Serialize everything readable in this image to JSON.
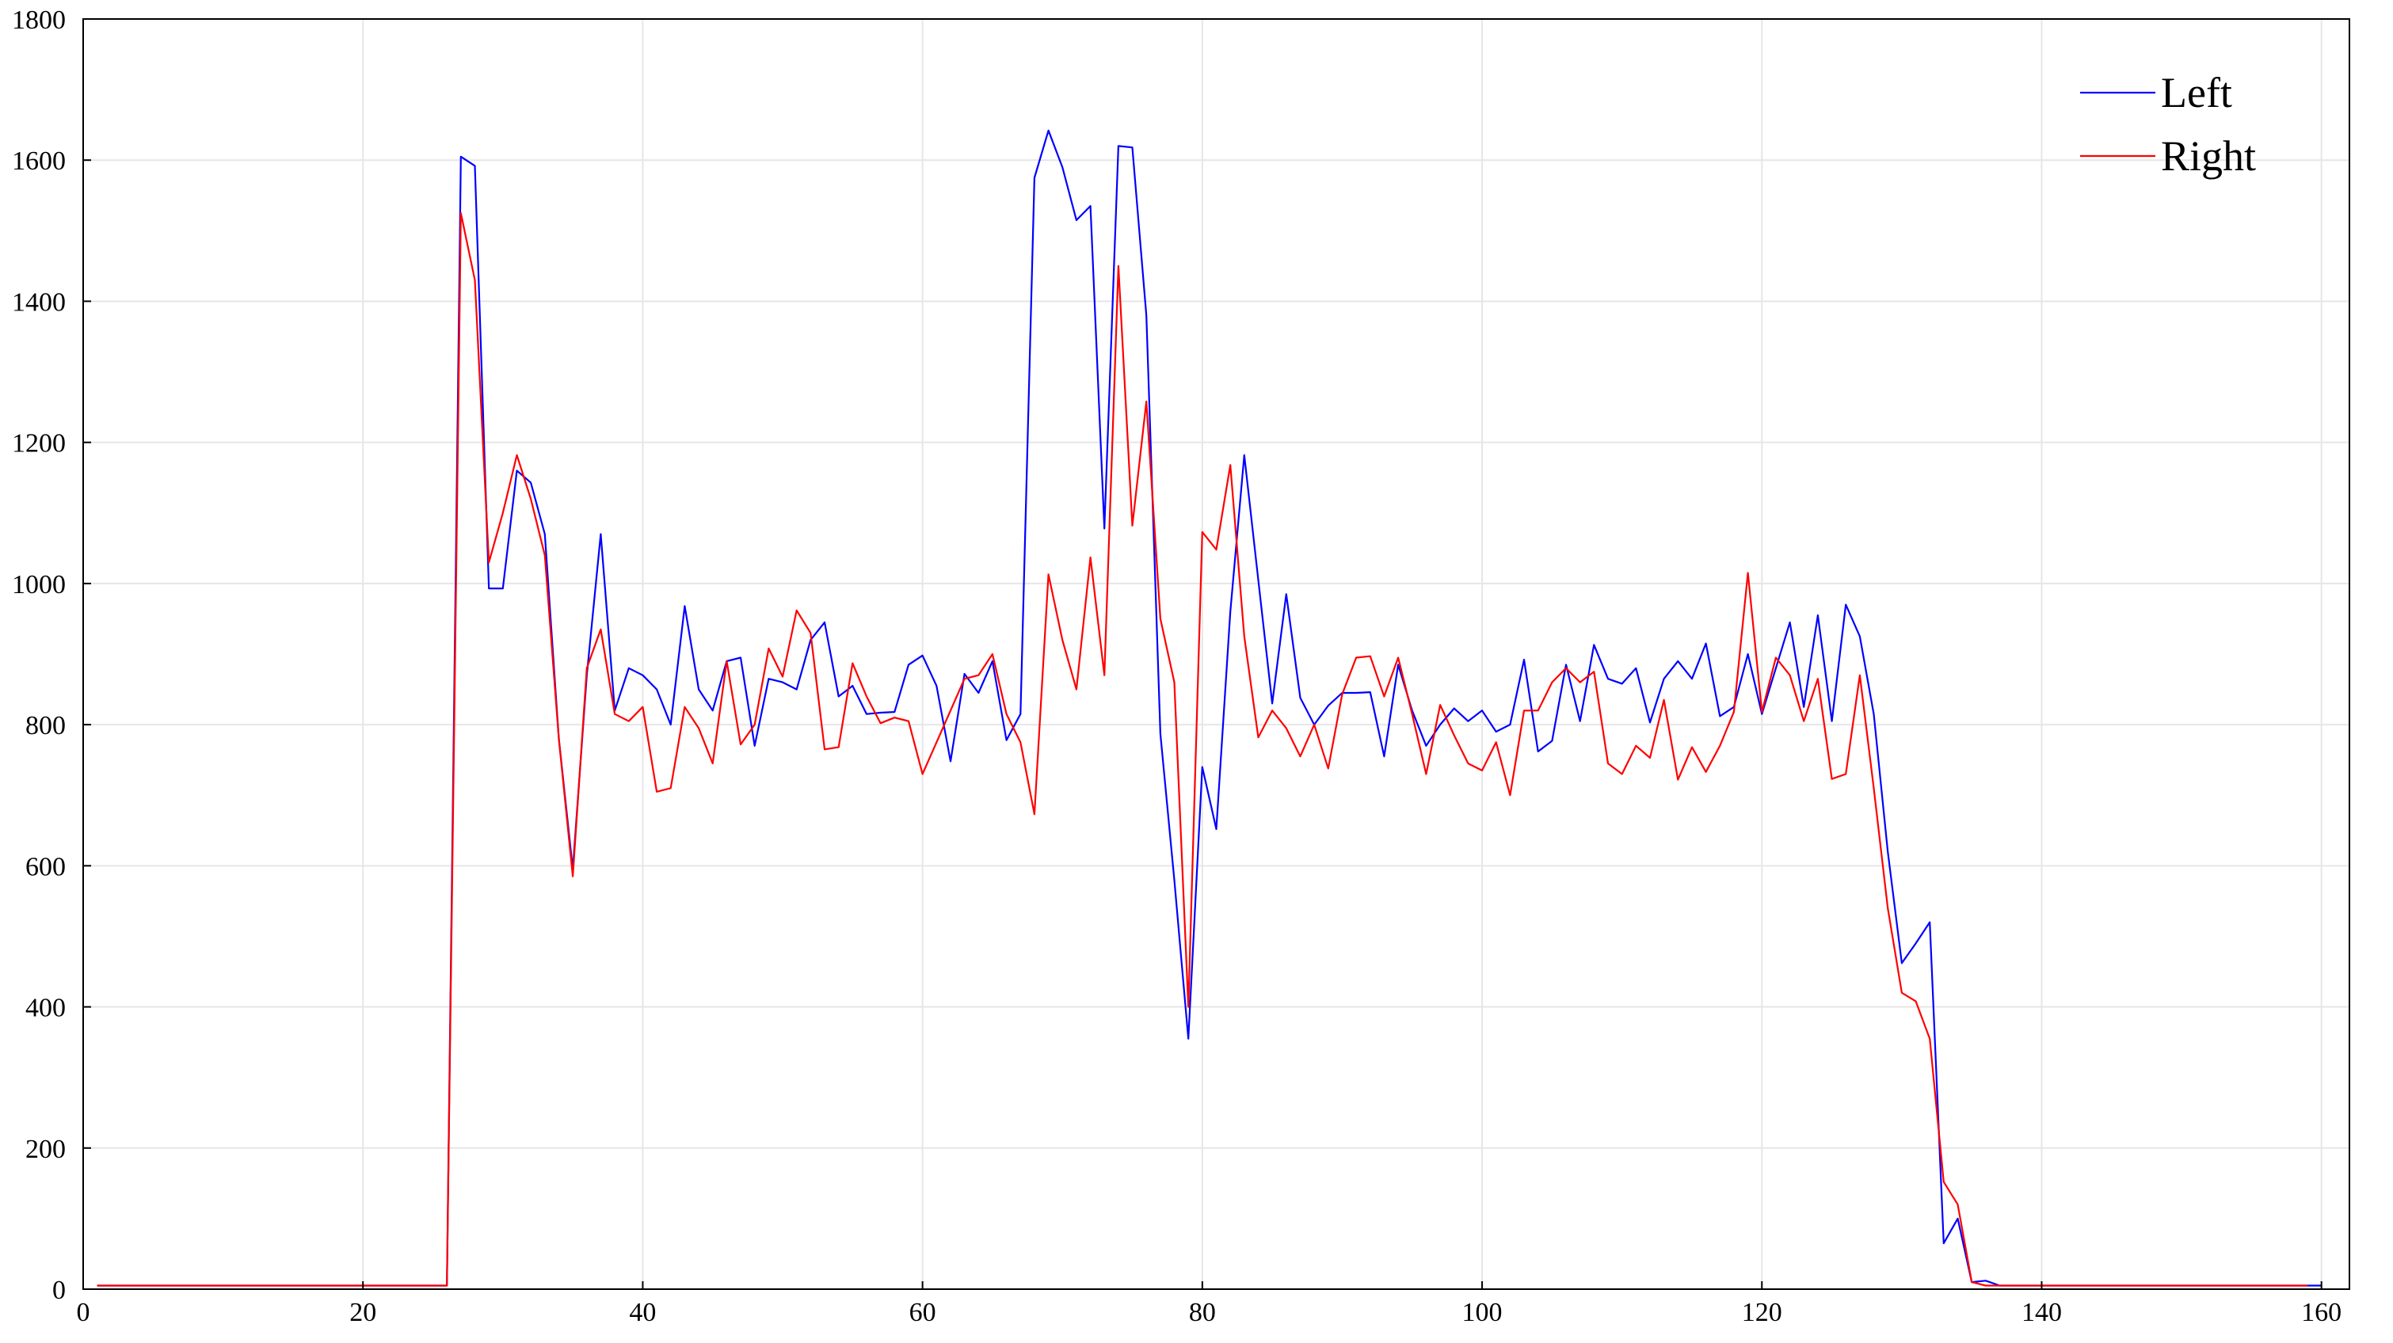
{
  "chart_data": {
    "type": "line",
    "title": "",
    "xlabel": "",
    "ylabel": "",
    "xlim": [
      0,
      162
    ],
    "ylim": [
      0,
      1800
    ],
    "xticks": [
      0,
      20,
      40,
      60,
      80,
      100,
      120,
      140,
      160
    ],
    "yticks": [
      0,
      200,
      400,
      600,
      800,
      1000,
      1200,
      1400,
      1600,
      1800
    ],
    "grid": true,
    "legend": {
      "position": "top-right",
      "entries": [
        "Left",
        "Right"
      ]
    },
    "x_start": 1,
    "series": [
      {
        "name": "Left",
        "color": "#0000ff",
        "values": [
          5,
          5,
          5,
          5,
          5,
          5,
          5,
          5,
          5,
          5,
          5,
          5,
          5,
          5,
          5,
          5,
          5,
          5,
          5,
          5,
          5,
          5,
          5,
          5,
          5,
          5,
          1605,
          1592,
          993,
          993,
          1160,
          1143,
          1070,
          780,
          595,
          870,
          1070,
          820,
          880,
          870,
          850,
          800,
          968,
          850,
          820,
          890,
          895,
          770,
          865,
          860,
          850,
          920,
          945,
          840,
          855,
          815,
          817,
          818,
          885,
          898,
          855,
          748,
          872,
          845,
          890,
          778,
          815,
          1575,
          1642,
          1590,
          1515,
          1535,
          1078,
          1620,
          1618,
          1380,
          787,
          580,
          355,
          740,
          652,
          960,
          1182,
          1005,
          830,
          985,
          838,
          800,
          827,
          845,
          845,
          846,
          755,
          885,
          820,
          770,
          800,
          823,
          805,
          820,
          790,
          800,
          892,
          762,
          777,
          885,
          805,
          913,
          865,
          858,
          880,
          803,
          865,
          890,
          865,
          915,
          812,
          825,
          900,
          815,
          880,
          945,
          825,
          955,
          805,
          970,
          925,
          815,
          620,
          462,
          490,
          520,
          65,
          100,
          10,
          12,
          5,
          5,
          5,
          5,
          5,
          5,
          5,
          5,
          5,
          5,
          5,
          5,
          5,
          5,
          5,
          5,
          5,
          5,
          5,
          5,
          5,
          5,
          5,
          5
        ]
      },
      {
        "name": "Right",
        "color": "#ff0000",
        "values": [
          5,
          5,
          5,
          5,
          5,
          5,
          5,
          5,
          5,
          5,
          5,
          5,
          5,
          5,
          5,
          5,
          5,
          5,
          5,
          5,
          5,
          5,
          5,
          5,
          5,
          5,
          1525,
          1430,
          1030,
          1100,
          1182,
          1120,
          1040,
          780,
          585,
          880,
          935,
          815,
          805,
          825,
          705,
          710,
          825,
          795,
          745,
          890,
          772,
          800,
          908,
          868,
          962,
          930,
          765,
          768,
          887,
          840,
          802,
          810,
          805,
          730,
          775,
          820,
          865,
          870,
          900,
          815,
          775,
          673,
          1013,
          920,
          850,
          1037,
          870,
          1450,
          1082,
          1258,
          950,
          860,
          400,
          1073,
          1048,
          1168,
          925,
          782,
          820,
          795,
          755,
          800,
          738,
          843,
          895,
          897,
          840,
          895,
          815,
          730,
          828,
          785,
          745,
          735,
          775,
          700,
          820,
          820,
          860,
          880,
          860,
          875,
          745,
          730,
          770,
          753,
          835,
          722,
          768,
          733,
          770,
          818,
          1015,
          818,
          895,
          870,
          805,
          865,
          723,
          730,
          870,
          710,
          540,
          420,
          408,
          355,
          152,
          120,
          10,
          5,
          5,
          5,
          5,
          5,
          5,
          5,
          5,
          5,
          5,
          5,
          5,
          5,
          5,
          5,
          5,
          5,
          5,
          5,
          5,
          5,
          5,
          5,
          5
        ]
      }
    ]
  }
}
